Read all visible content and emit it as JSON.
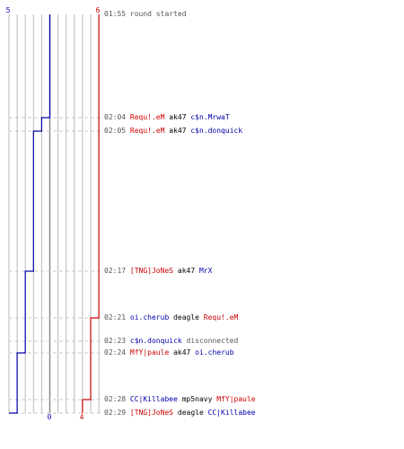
{
  "colors": {
    "blue": "#0000aa",
    "red": "#cc0000",
    "grid": "#b8b8b8",
    "dash": "#c8c8c8",
    "mid": "#808080",
    "text": "#000000",
    "muted": "#555555"
  },
  "chart_data": {
    "type": "line",
    "series": [
      {
        "team": "blue",
        "start": 5,
        "end": 0,
        "points": [
          {
            "time": "01:55",
            "alive": 5
          },
          {
            "time": "02:04",
            "alive": 4
          },
          {
            "time": "02:05",
            "alive": 3
          },
          {
            "time": "02:17",
            "alive": 2
          },
          {
            "time": "02:24",
            "alive": 1
          },
          {
            "time": "02:29",
            "alive": 0
          }
        ]
      },
      {
        "team": "red",
        "start": 6,
        "end": 4,
        "points": [
          {
            "time": "01:55",
            "alive": 6
          },
          {
            "time": "02:21",
            "alive": 5
          },
          {
            "time": "02:28",
            "alive": 4
          }
        ]
      }
    ],
    "labels": {
      "blue_start": "5",
      "red_start": "6",
      "blue_end": "0",
      "red_end": "4"
    }
  },
  "events": [
    {
      "time": "01:55",
      "parts": [
        {
          "text": "round started",
          "c": "muted"
        }
      ]
    },
    {
      "time": "02:04",
      "parts": [
        {
          "text": "Requ!.eM",
          "c": "red"
        },
        {
          "text": " ak47 ",
          "c": "text"
        },
        {
          "text": "c$n.MrwaT",
          "c": "blue"
        }
      ]
    },
    {
      "time": "02:05",
      "parts": [
        {
          "text": "Requ!.eM",
          "c": "red"
        },
        {
          "text": " ak47 ",
          "c": "text"
        },
        {
          "text": "c$n.donquick",
          "c": "blue"
        }
      ]
    },
    {
      "time": "02:17",
      "parts": [
        {
          "text": "[TNG]JoNeS",
          "c": "red"
        },
        {
          "text": " ak47 ",
          "c": "text"
        },
        {
          "text": "MrX",
          "c": "blue"
        }
      ]
    },
    {
      "time": "02:21",
      "parts": [
        {
          "text": "oi.cherub",
          "c": "blue"
        },
        {
          "text": " deagle ",
          "c": "text"
        },
        {
          "text": "Requ!.eM",
          "c": "red"
        }
      ]
    },
    {
      "time": "02:23",
      "parts": [
        {
          "text": "c$n.donquick",
          "c": "blue"
        },
        {
          "text": " disconnected",
          "c": "muted"
        }
      ]
    },
    {
      "time": "02:24",
      "parts": [
        {
          "text": "MfY|paule",
          "c": "red"
        },
        {
          "text": " ak47 ",
          "c": "text"
        },
        {
          "text": "oi.cherub",
          "c": "blue"
        }
      ]
    },
    {
      "time": "02:28",
      "parts": [
        {
          "text": "CC|Killabee",
          "c": "blue"
        },
        {
          "text": " mp5navy ",
          "c": "text"
        },
        {
          "text": "MfY|paule",
          "c": "red"
        }
      ]
    },
    {
      "time": "02:29",
      "parts": [
        {
          "text": "[TNG]JoNeS",
          "c": "red"
        },
        {
          "text": " deagle ",
          "c": "text"
        },
        {
          "text": "CC|Killabee",
          "c": "blue"
        }
      ]
    }
  ]
}
